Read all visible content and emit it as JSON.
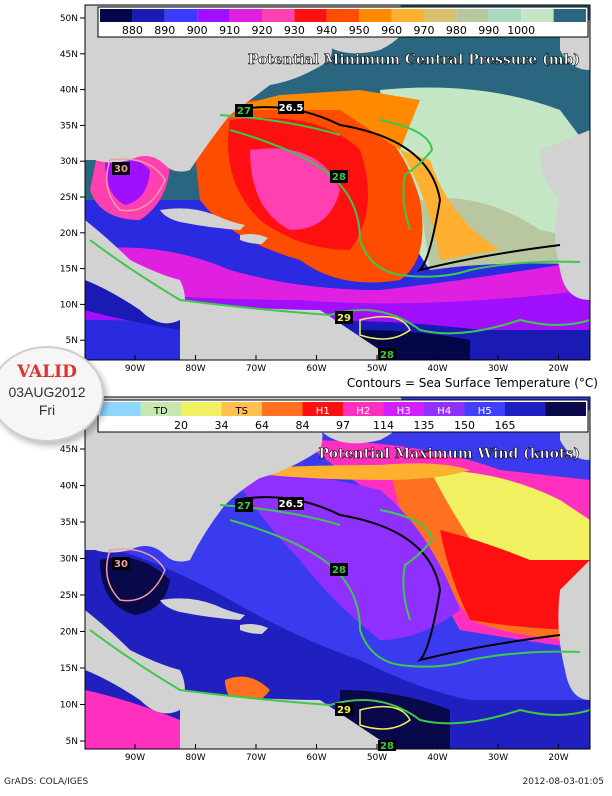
{
  "top_panel": {
    "title": "Potential Minimum Central Pressure (mb)",
    "colorbar": {
      "colors": [
        "#05054a",
        "#1a1ab4",
        "#3b3bff",
        "#a010ff",
        "#e020e0",
        "#ff40b0",
        "#ff1010",
        "#ff4d00",
        "#ff8a00",
        "#ffb030",
        "#d9c070",
        "#b8c7a0",
        "#a8d8c0",
        "#c4e6c4",
        "#2a6680"
      ],
      "labels": [
        "880",
        "890",
        "900",
        "910",
        "920",
        "930",
        "940",
        "950",
        "960",
        "970",
        "980",
        "990",
        "1000"
      ]
    },
    "lat_labels": [
      "50N",
      "45N",
      "40N",
      "35N",
      "30N",
      "25N",
      "20N",
      "15N",
      "10N",
      "5N"
    ],
    "lon_labels": [
      "90W",
      "80W",
      "70W",
      "60W",
      "50W",
      "40W",
      "30W",
      "20W"
    ],
    "contour_labels": [
      "26.5",
      "27",
      "28",
      "29",
      "30",
      "28"
    ]
  },
  "subtitle": "Contours = Sea Surface Temperature (°C)",
  "bottom_panel": {
    "title": "Potential Maximum Wind (knots)",
    "colorbar": {
      "colors": [
        "#8fd6ff",
        "#c8e6b0",
        "#f0f060",
        "#ffc050",
        "#ff7020",
        "#ff1010",
        "#ff30c0",
        "#d020ff",
        "#9030ff",
        "#4040ff",
        "#2020c0",
        "#08084a"
      ],
      "category_labels": [
        "TD",
        "TS",
        "H1",
        "H2",
        "H3",
        "H4",
        "H5"
      ],
      "value_labels": [
        "20",
        "34",
        "64",
        "84",
        "97",
        "114",
        "135",
        "150",
        "165"
      ]
    },
    "lat_labels": [
      "45N",
      "40N",
      "35N",
      "30N",
      "25N",
      "20N",
      "15N",
      "10N",
      "5N"
    ],
    "lon_labels": [
      "90W",
      "80W",
      "70W",
      "60W",
      "50W",
      "40W",
      "30W",
      "20W"
    ],
    "contour_labels": [
      "26.5",
      "27",
      "28",
      "29",
      "30",
      "28"
    ]
  },
  "badge": {
    "title": "VALID",
    "date": "03AUG2012",
    "day": "Fri"
  },
  "footer": {
    "left": "GrADS: COLA/IGES",
    "right": "2012-08-03-01:05"
  },
  "colors": {
    "ocean_deep": "#2a6680",
    "land": "#d2d2d2",
    "sst_contour": "#3cc84a",
    "contour_black": "#000000"
  }
}
